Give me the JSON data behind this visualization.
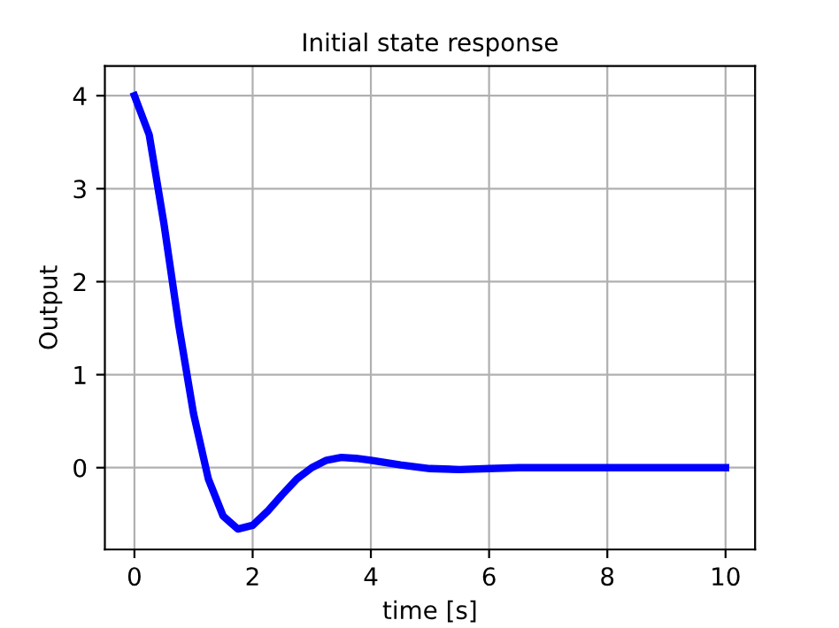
{
  "chart_data": {
    "type": "line",
    "title": "Initial state response",
    "xlabel": "time [s]",
    "ylabel": "Output",
    "x": [
      0,
      0.25,
      0.5,
      0.75,
      1.0,
      1.25,
      1.5,
      1.75,
      2.0,
      2.25,
      2.5,
      2.75,
      3.0,
      3.25,
      3.5,
      3.75,
      4.0,
      4.5,
      5.0,
      5.5,
      6.0,
      6.5,
      7.0,
      8.0,
      9.0,
      10.0
    ],
    "series": [
      {
        "color": "#0000ff",
        "values": [
          4.0,
          3.58,
          2.62,
          1.53,
          0.58,
          -0.12,
          -0.52,
          -0.66,
          -0.62,
          -0.47,
          -0.29,
          -0.12,
          0.0,
          0.08,
          0.11,
          0.1,
          0.08,
          0.03,
          -0.01,
          -0.02,
          -0.01,
          0.0,
          0.0,
          0.0,
          0.0,
          0.0
        ]
      }
    ],
    "xlim": [
      -0.5,
      10.5
    ],
    "ylim": [
      -0.88,
      4.32
    ],
    "xticks": [
      0,
      2,
      4,
      6,
      8,
      10
    ],
    "yticks": [
      0,
      1,
      2,
      3,
      4
    ],
    "grid": true,
    "line_style": "solid",
    "marker": "none"
  }
}
